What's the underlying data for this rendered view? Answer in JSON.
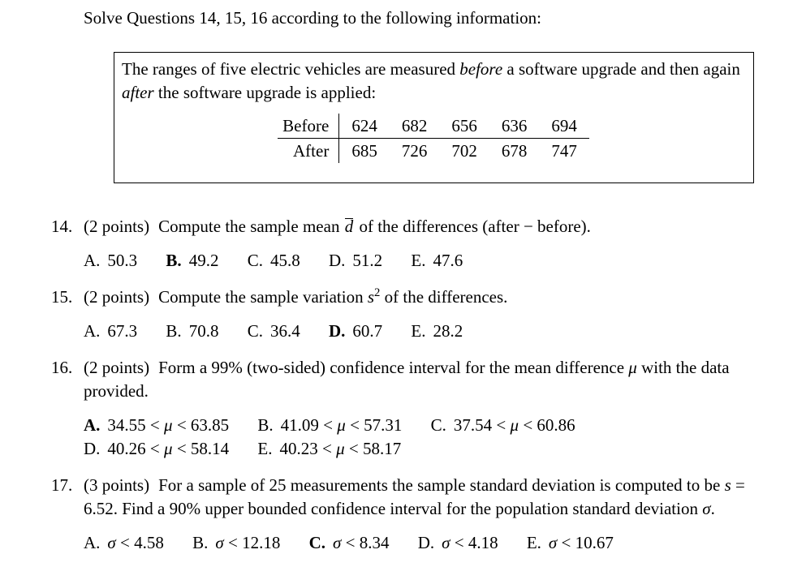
{
  "colors": {
    "background": "#ffffff",
    "text": "#000000",
    "border": "#000000"
  },
  "header": {
    "instruction": "Solve Questions 14, 15, 16 according to the following information:"
  },
  "info_box": {
    "description_runs": [
      {
        "t": "The ranges of five electric vehicles are measured "
      },
      {
        "t": "before",
        "s": "i"
      },
      {
        "t": " a software upgrade and then again "
      },
      {
        "t": "after",
        "s": "i"
      },
      {
        "t": " the software upgrade is applied:"
      }
    ],
    "table": {
      "rows": [
        {
          "label": "Before",
          "values": [
            "624",
            "682",
            "656",
            "636",
            "694"
          ]
        },
        {
          "label": "After",
          "values": [
            "685",
            "726",
            "702",
            "678",
            "747"
          ]
        }
      ]
    }
  },
  "questions": [
    {
      "number": "14.",
      "points": "(2 points)",
      "stem_runs": [
        {
          "t": "Compute the sample mean "
        },
        {
          "t": "d",
          "s": "bar"
        },
        {
          "t": " of the differences (after − before)."
        }
      ],
      "options": [
        {
          "label": "A.",
          "bold": false,
          "value_runs": [
            {
              "t": "50.3"
            }
          ]
        },
        {
          "label": "B.",
          "bold": true,
          "value_runs": [
            {
              "t": "49.2"
            }
          ]
        },
        {
          "label": "C.",
          "bold": false,
          "value_runs": [
            {
              "t": "45.8"
            }
          ]
        },
        {
          "label": "D.",
          "bold": false,
          "value_runs": [
            {
              "t": "51.2"
            }
          ]
        },
        {
          "label": "E.",
          "bold": false,
          "value_runs": [
            {
              "t": "47.6"
            }
          ]
        }
      ]
    },
    {
      "number": "15.",
      "points": "(2 points)",
      "stem_runs": [
        {
          "t": "Compute the sample variation "
        },
        {
          "t": "s",
          "s": "i"
        },
        {
          "t": "2",
          "s": "sup"
        },
        {
          "t": " of the differences."
        }
      ],
      "options": [
        {
          "label": "A.",
          "bold": false,
          "value_runs": [
            {
              "t": "67.3"
            }
          ]
        },
        {
          "label": "B.",
          "bold": false,
          "value_runs": [
            {
              "t": "70.8"
            }
          ]
        },
        {
          "label": "C.",
          "bold": false,
          "value_runs": [
            {
              "t": "36.4"
            }
          ]
        },
        {
          "label": "D.",
          "bold": true,
          "value_runs": [
            {
              "t": "60.7"
            }
          ]
        },
        {
          "label": "E.",
          "bold": false,
          "value_runs": [
            {
              "t": "28.2"
            }
          ]
        }
      ]
    },
    {
      "number": "16.",
      "points": "(2 points)",
      "stem_runs": [
        {
          "t": "Form a 99% (two-sided) confidence interval for the mean difference "
        },
        {
          "t": "μ",
          "s": "i"
        },
        {
          "t": " with the data provided."
        }
      ],
      "options": [
        {
          "label": "A.",
          "bold": true,
          "value_runs": [
            {
              "t": "34.55 < "
            },
            {
              "t": "μ",
              "s": "i"
            },
            {
              "t": " < 63.85"
            }
          ]
        },
        {
          "label": "B.",
          "bold": false,
          "value_runs": [
            {
              "t": "41.09 < "
            },
            {
              "t": "μ",
              "s": "i"
            },
            {
              "t": " < 57.31"
            }
          ]
        },
        {
          "label": "C.",
          "bold": false,
          "value_runs": [
            {
              "t": "37.54 < "
            },
            {
              "t": "μ",
              "s": "i"
            },
            {
              "t": " < 60.86"
            }
          ]
        },
        {
          "label": "D.",
          "bold": false,
          "value_runs": [
            {
              "t": "40.26 < "
            },
            {
              "t": "μ",
              "s": "i"
            },
            {
              "t": " < 58.14"
            }
          ]
        },
        {
          "label": "E.",
          "bold": false,
          "value_runs": [
            {
              "t": "40.23 < "
            },
            {
              "t": "μ",
              "s": "i"
            },
            {
              "t": " < 58.17"
            }
          ]
        }
      ]
    },
    {
      "number": "17.",
      "points": "(3 points)",
      "stem_runs": [
        {
          "t": "For a sample of 25 measurements the sample standard deviation is computed to be "
        },
        {
          "t": "s",
          "s": "i"
        },
        {
          "t": " = 6.52. Find a 90% upper bounded confidence interval for the population stan­dard deviation "
        },
        {
          "t": "σ",
          "s": "i"
        },
        {
          "t": "."
        }
      ],
      "options": [
        {
          "label": "A.",
          "bold": false,
          "value_runs": [
            {
              "t": "σ",
              "s": "i"
            },
            {
              "t": " < 4.58"
            }
          ]
        },
        {
          "label": "B.",
          "bold": false,
          "value_runs": [
            {
              "t": "σ",
              "s": "i"
            },
            {
              "t": " < 12.18"
            }
          ]
        },
        {
          "label": "C.",
          "bold": true,
          "value_runs": [
            {
              "t": "σ",
              "s": "i"
            },
            {
              "t": " < 8.34"
            }
          ]
        },
        {
          "label": "D.",
          "bold": false,
          "value_runs": [
            {
              "t": "σ",
              "s": "i"
            },
            {
              "t": " < 4.18"
            }
          ]
        },
        {
          "label": "E.",
          "bold": false,
          "value_runs": [
            {
              "t": "σ",
              "s": "i"
            },
            {
              "t": " < 10.67"
            }
          ]
        }
      ]
    }
  ]
}
